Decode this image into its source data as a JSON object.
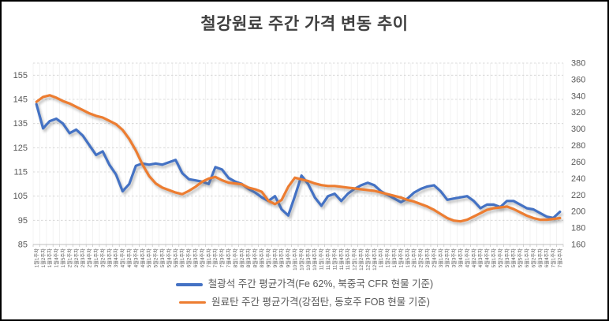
{
  "chart_data": {
    "type": "line",
    "title": "철강원료 주간 가격 변동 추이",
    "legend_position": "bottom",
    "grid": true,
    "left_axis": {
      "min": 85,
      "max": 160,
      "step": 10,
      "ticks": [
        85,
        95,
        105,
        115,
        125,
        135,
        145,
        155
      ]
    },
    "right_axis": {
      "min": 160,
      "max": 380,
      "step": 20,
      "ticks": [
        160,
        180,
        200,
        220,
        240,
        260,
        280,
        300,
        320,
        340,
        360,
        380
      ]
    },
    "categories": [
      "1월1주차",
      "1월2주차",
      "1월3주차",
      "1월4주차",
      "1월5주차",
      "2월1주차",
      "2월2주차",
      "2월3주차",
      "2월4주차",
      "3월1주차",
      "3월2주차",
      "3월3주차",
      "3월4주차",
      "4월1주차",
      "4월2주차",
      "4월3주차",
      "4월4주차",
      "5월1주차",
      "5월2주차",
      "5월3주차",
      "5월4주차",
      "5월5주차",
      "6월1주차",
      "6월2주차",
      "6월3주차",
      "6월4주차",
      "7월1주차",
      "7월2주차",
      "7월3주차",
      "7월4주차",
      "8월1주차",
      "8월2주차",
      "8월3주차",
      "8월4주차",
      "8월5주차",
      "9월1주차",
      "9월2주차",
      "9월3주차",
      "9월4주차",
      "10월1주차",
      "10월2주차",
      "10월3주차",
      "10월4주차",
      "11월1주차",
      "11월2주차",
      "11월3주차",
      "11월4주차",
      "11월5주차",
      "12월1주차",
      "12월2주차",
      "12월3주차",
      "12월4주차",
      "1월1주차",
      "1월2주차",
      "1월3주차",
      "1월4주차",
      "1월5주차",
      "2월1주차",
      "2월2주차",
      "2월3주차",
      "2월4주차",
      "3월1주차",
      "3월2주차",
      "3월3주차",
      "3월4주차",
      "4월1주차",
      "4월2주차",
      "4월3주차",
      "4월4주차",
      "5월1주차",
      "5월2주차",
      "5월3주차",
      "5월4주차",
      "5월5주차",
      "6월1주차",
      "6월2주차",
      "6월3주차",
      "6월4주차",
      "7월1주차",
      "7월2주차"
    ],
    "series": [
      {
        "name": "철광석 주간 평균가격(Fe 62%, 북중국 CFR 현물 기준)",
        "axis": "left",
        "color": "#4472C4",
        "values": [
          143,
          133,
          136,
          137,
          135,
          131,
          132.5,
          130,
          126,
          122,
          123.5,
          118,
          114,
          107,
          110,
          117.5,
          118.5,
          118,
          118.5,
          118,
          119,
          120,
          114.5,
          112,
          111.5,
          111,
          110,
          117,
          116,
          112.5,
          111,
          110,
          108,
          106.5,
          104.5,
          103,
          105,
          99.5,
          97,
          105,
          113.5,
          110,
          104.5,
          101,
          105,
          106,
          103,
          106,
          108,
          109.5,
          110.5,
          109.5,
          107,
          105.5,
          104,
          102.5,
          104,
          106.5,
          108,
          109,
          109.5,
          107,
          103.5,
          104,
          104.5,
          105,
          103,
          100,
          101.5,
          101.5,
          100.5,
          103,
          103,
          101.5,
          100,
          99.5,
          98,
          96.5,
          96,
          98.5
        ]
      },
      {
        "name": "원료탄 주간 평균가격(강점탄, 동호주 FOB 현물 기준)",
        "axis": "right",
        "color": "#ED7D31",
        "values": [
          333,
          339,
          341,
          338,
          334,
          331,
          327,
          323,
          319,
          316,
          314,
          310,
          306,
          299,
          288,
          274,
          257,
          243,
          234,
          229,
          226,
          223,
          221,
          225,
          230,
          236,
          240,
          242,
          238,
          235,
          234,
          233,
          229,
          227,
          224,
          213,
          209,
          214,
          230,
          241,
          239,
          237,
          234,
          232,
          231,
          231,
          230,
          229,
          228,
          227,
          226,
          225,
          223,
          221,
          219,
          217,
          214,
          212,
          209,
          206,
          202,
          197,
          192,
          189,
          188,
          190,
          194,
          198,
          202,
          204,
          205,
          206,
          203,
          199,
          195,
          192,
          190,
          190,
          191,
          192
        ]
      }
    ],
    "style": {
      "title_color": "#404040",
      "axis_text_color": "#595959",
      "h_grid_color": "#D0D0D0",
      "v_grid_color": "#EEEEEE",
      "axis_line_color": "#BFBFBF"
    }
  }
}
